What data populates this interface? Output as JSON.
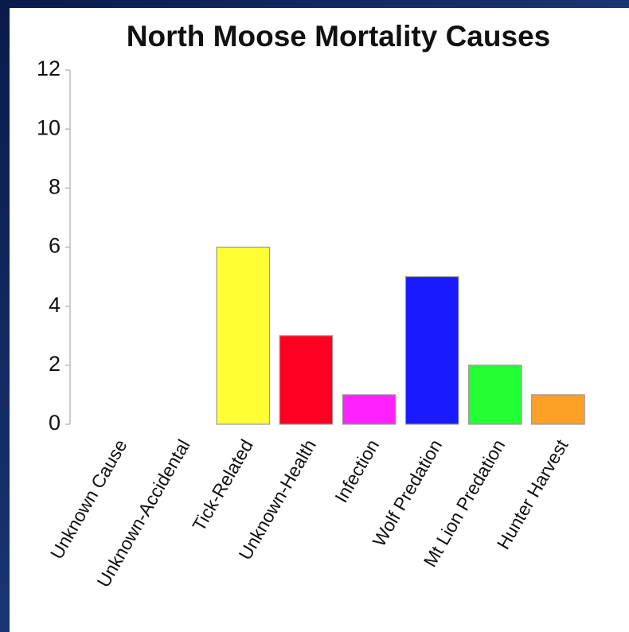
{
  "chart_data": {
    "type": "bar",
    "title": "North Moose Mortality Causes",
    "categories": [
      "Unknown Cause",
      "Unknown-Accidental",
      "Tick-Related",
      "Unknown-Health",
      "Infection",
      "Wolf Predation",
      "Mt Lion Predation",
      "Hunter Harvest"
    ],
    "values": [
      0,
      0,
      6,
      3,
      1,
      5,
      2,
      1
    ],
    "colors": [
      "#cccccc",
      "#cccccc",
      "#ffff33",
      "#ff0022",
      "#ff22ff",
      "#1a1aff",
      "#22ff33",
      "#ffa026"
    ],
    "ylim": [
      0,
      12
    ],
    "yticks": [
      0,
      2,
      4,
      6,
      8,
      10,
      12
    ],
    "grid": false
  }
}
